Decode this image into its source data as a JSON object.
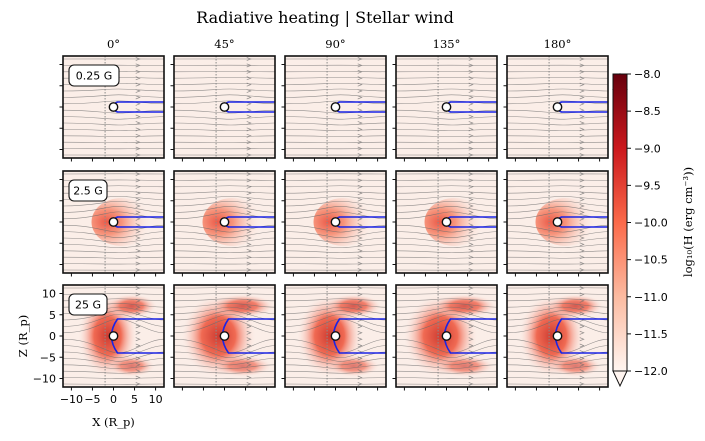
{
  "chart_data": {
    "type": "heatmap",
    "title": "Radiative heating | Stellar wind",
    "columns": [
      "0°",
      "45°",
      "90°",
      "135°",
      "180°"
    ],
    "column_values_deg": [
      0,
      45,
      90,
      135,
      180
    ],
    "rows": [
      "0.25 G",
      "2.5 G",
      "25 G"
    ],
    "row_values_gauss": [
      0.25,
      2.5,
      25
    ],
    "xlabel": "X (R_p)",
    "ylabel": "Z (R_p)",
    "xlim": [
      -12,
      12
    ],
    "ylim": [
      -12,
      12
    ],
    "xticks": [
      "−10",
      "−5",
      "0",
      "5",
      "10"
    ],
    "xtick_values": [
      -10,
      -5,
      0,
      5,
      10
    ],
    "yticks": [
      "10",
      "5",
      "0",
      "−5",
      "−10"
    ],
    "ytick_values": [
      10,
      5,
      0,
      -5,
      -10
    ],
    "colorbar": {
      "label": "log₁₀(H (erg cm⁻³))",
      "min": -12.0,
      "max": -8.0,
      "ticks": [
        "−8.0",
        "−8.5",
        "−9.0",
        "−9.5",
        "−10.0",
        "−10.5",
        "−11.0",
        "−11.5",
        "−12.0"
      ],
      "tick_values": [
        -8.0,
        -8.5,
        -9.0,
        -9.5,
        -10.0,
        -10.5,
        -11.0,
        -11.5,
        -12.0
      ],
      "colormap": "Reds",
      "colors": [
        "#fff5f0",
        "#fcbba1",
        "#fb6a4a",
        "#cb181d",
        "#67000d"
      ]
    },
    "colors": {
      "background_field": "#fbeee8",
      "streamline": "#6b6b6b",
      "boundary_line": "#1a24e6",
      "planet_ring": "#1a24e6"
    }
  }
}
